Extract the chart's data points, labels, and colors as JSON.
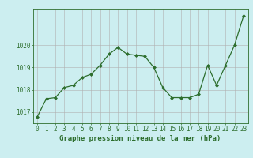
{
  "x": [
    0,
    1,
    2,
    3,
    4,
    5,
    6,
    7,
    8,
    9,
    10,
    11,
    12,
    13,
    14,
    15,
    16,
    17,
    18,
    19,
    20,
    21,
    22,
    23
  ],
  "y": [
    1016.8,
    1017.6,
    1017.65,
    1018.1,
    1018.2,
    1018.55,
    1018.7,
    1019.1,
    1019.6,
    1019.9,
    1019.6,
    1019.55,
    1019.5,
    1019.0,
    1018.1,
    1017.65,
    1017.65,
    1017.65,
    1017.8,
    1019.1,
    1018.2,
    1019.1,
    1020.0,
    1021.3
  ],
  "line_color": "#2d6e2d",
  "marker": "D",
  "marker_size": 2.0,
  "bg_color": "#cceef0",
  "grid_color": "#b0b0b0",
  "xlabel": "Graphe pression niveau de la mer (hPa)",
  "xlabel_color": "#2d6e2d",
  "ytick_labels": [
    1017,
    1018,
    1019,
    1020
  ],
  "xtick_labels": [
    "0",
    "1",
    "2",
    "3",
    "4",
    "5",
    "6",
    "7",
    "8",
    "9",
    "10",
    "11",
    "12",
    "13",
    "14",
    "15",
    "16",
    "17",
    "18",
    "19",
    "20",
    "21",
    "22",
    "23"
  ],
  "ylim": [
    1016.5,
    1021.6
  ],
  "xlim": [
    -0.5,
    23.5
  ],
  "axis_color": "#2d6e2d",
  "tick_color": "#2d6e2d",
  "label_fontsize": 5.5,
  "xlabel_fontsize": 6.5
}
